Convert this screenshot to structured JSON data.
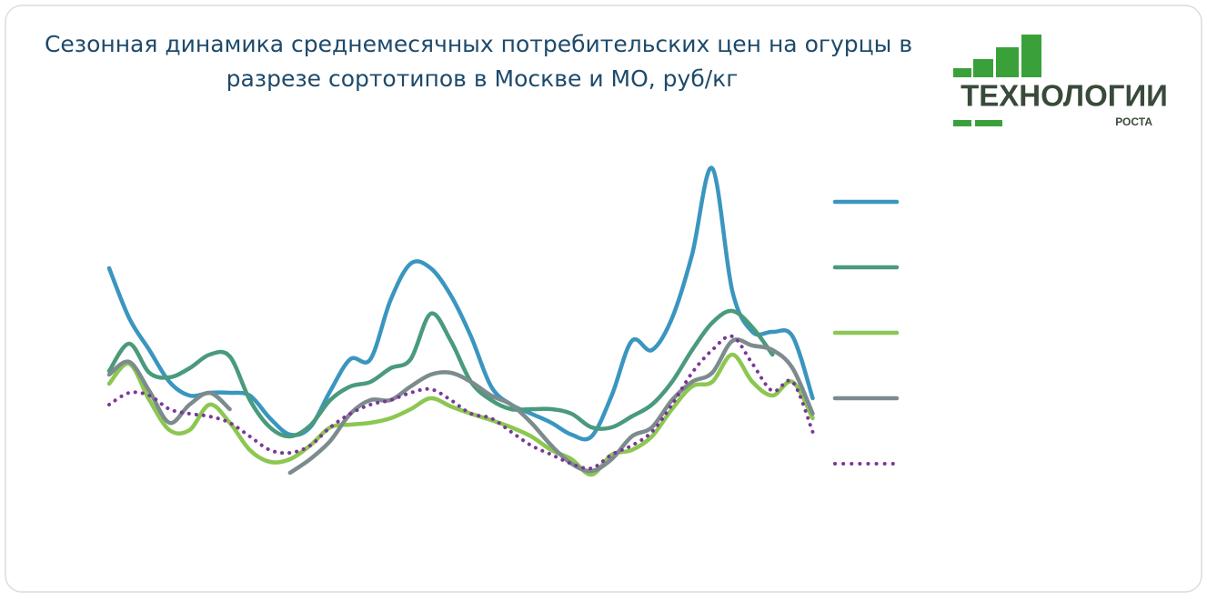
{
  "chart_data": {
    "type": "line",
    "title": "Сезонная динамика среднемесячных потребительских цен на огурцы в разрезе сортотипов в Москве и МО, руб/кг",
    "logo": {
      "line1": "ТЕХНОЛОГИИ",
      "line2": "РОСТА"
    },
    "ylim": [
      0,
      450
    ],
    "series": [
      {
        "color": "#3a96bf",
        "dash": false,
        "values": [
          305,
          250,
          215,
          180,
          165,
          168,
          168,
          165,
          140,
          122,
          130,
          170,
          205,
          205,
          270,
          310,
          305,
          275,
          230,
          175,
          155,
          145,
          135,
          122,
          120,
          165,
          225,
          215,
          250,
          320,
          415,
          280,
          235,
          235,
          230,
          162
        ]
      },
      {
        "color": "#4a9a7c",
        "dash": false,
        "values": [
          192,
          222,
          190,
          185,
          195,
          210,
          208,
          160,
          130,
          120,
          132,
          160,
          175,
          180,
          195,
          205,
          255,
          225,
          180,
          160,
          150,
          150,
          150,
          145,
          130,
          130,
          142,
          155,
          180,
          215,
          245,
          258,
          240,
          210,
          null,
          null
        ]
      },
      {
        "color": "#8cc751",
        "dash": false,
        "values": [
          178,
          200,
          160,
          127,
          127,
          155,
          135,
          105,
          92,
          95,
          110,
          130,
          133,
          135,
          140,
          150,
          162,
          153,
          145,
          138,
          130,
          120,
          105,
          95,
          78,
          100,
          105,
          120,
          150,
          175,
          180,
          210,
          180,
          165,
          180,
          140
        ]
      },
      {
        "color": "#7c8b8e",
        "dash": false,
        "values": [
          188,
          202,
          170,
          135,
          155,
          168,
          150,
          null,
          null,
          80,
          95,
          115,
          145,
          160,
          160,
          175,
          188,
          190,
          180,
          165,
          155,
          135,
          110,
          90,
          82,
          95,
          120,
          130,
          160,
          180,
          190,
          225,
          220,
          215,
          195,
          145
        ]
      },
      {
        "color": "#7a3899",
        "dash": true,
        "values": [
          155,
          168,
          165,
          150,
          145,
          142,
          135,
          120,
          105,
          102,
          110,
          130,
          145,
          155,
          160,
          168,
          172,
          160,
          145,
          140,
          125,
          110,
          100,
          90,
          85,
          100,
          110,
          125,
          155,
          190,
          215,
          230,
          200,
          170,
          180,
          125
        ]
      }
    ]
  }
}
